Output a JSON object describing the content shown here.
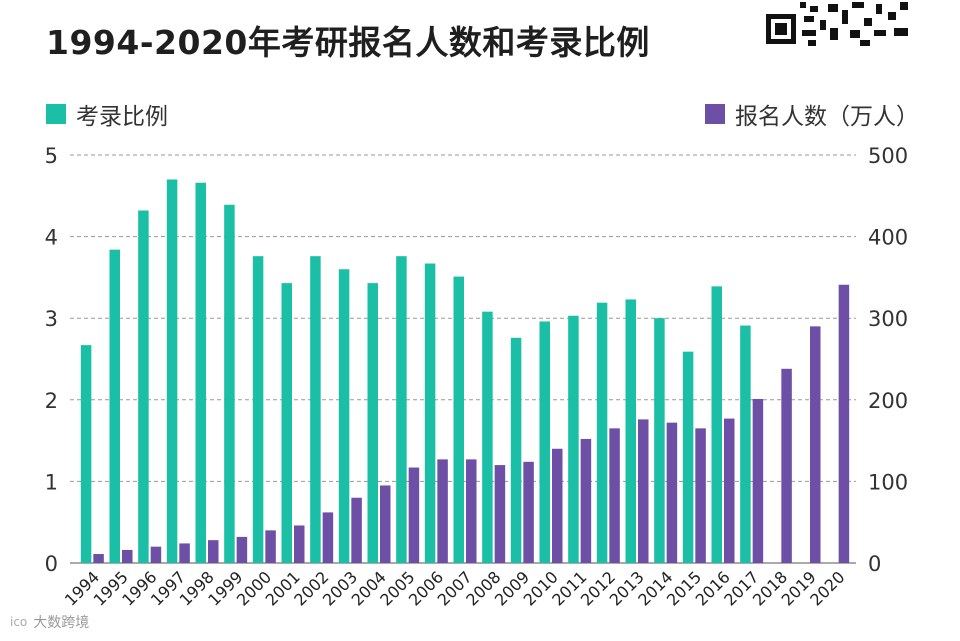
{
  "title": "1994-2020年考研报名人数和考录比例",
  "legend": {
    "ratio_label": "考录比例",
    "applicants_label": "报名人数（万人）"
  },
  "colors": {
    "ratio": "#1bbfa6",
    "applicants": "#6e4fa6",
    "grid": "#9a9a9a"
  },
  "footer": {
    "logo_mark": "ico",
    "text": "大数跨境"
  },
  "chart_data": {
    "type": "bar",
    "title": "1994-2020年考研报名人数和考录比例",
    "categories": [
      "1994",
      "1995",
      "1996",
      "1997",
      "1998",
      "1999",
      "2000",
      "2001",
      "2002",
      "2003",
      "2004",
      "2005",
      "2006",
      "2007",
      "2008",
      "2009",
      "2010",
      "2011",
      "2012",
      "2013",
      "2014",
      "2015",
      "2016",
      "2017",
      "2018",
      "2019",
      "2020"
    ],
    "series": [
      {
        "name": "考录比例",
        "axis": "left",
        "values": [
          2.67,
          3.84,
          4.32,
          4.7,
          4.66,
          4.39,
          3.76,
          3.43,
          3.76,
          3.6,
          3.43,
          3.76,
          3.67,
          3.51,
          3.08,
          2.76,
          2.96,
          3.03,
          3.19,
          3.23,
          3.0,
          2.59,
          3.39,
          2.91,
          null,
          null,
          null
        ]
      },
      {
        "name": "报名人数（万人）",
        "axis": "right",
        "values": [
          11,
          16,
          20,
          24,
          28,
          32,
          40,
          46,
          62,
          80,
          95,
          117,
          127,
          127,
          120,
          124,
          140,
          152,
          165,
          176,
          172,
          165,
          177,
          201,
          238,
          290,
          341
        ]
      }
    ],
    "y_left": {
      "min": 0,
      "max": 5,
      "ticks": [
        "0",
        "1",
        "2",
        "3",
        "4",
        "5"
      ]
    },
    "y_right": {
      "min": 0,
      "max": 500,
      "ticks": [
        "0",
        "100",
        "200",
        "300",
        "400",
        "500"
      ]
    },
    "grid": true
  }
}
